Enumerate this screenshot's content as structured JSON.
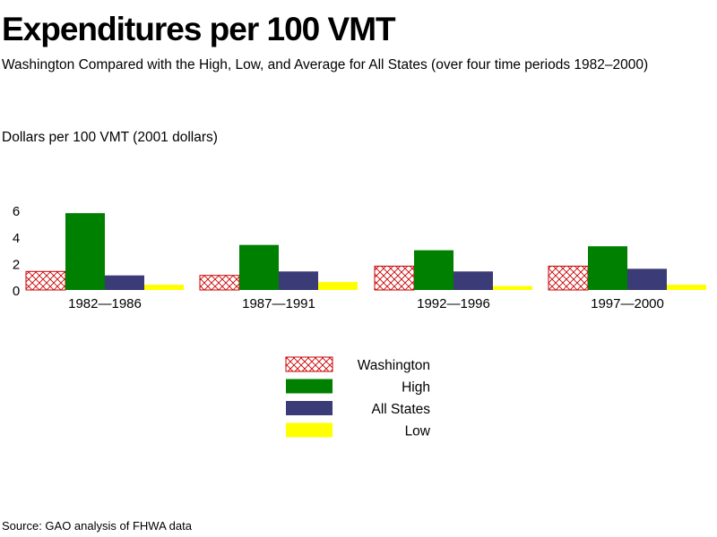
{
  "chart_data": {
    "type": "bar",
    "title": "Expenditures per 100 VMT",
    "subtitle": "Washington Compared with the High, Low, and Average for All States (over four time periods 1982–2000)",
    "ylabel": "Dollars per 100 VMT   (2001 dollars)",
    "xlabel": "",
    "categories": [
      "1982—1986",
      "1987—1991",
      "1992—1996",
      "1997—2000"
    ],
    "yticks": [
      "0",
      "2",
      "4",
      "6"
    ],
    "ylim": [
      0,
      6.5
    ],
    "grid": false,
    "legend": "bottom-center",
    "series": [
      {
        "name": "Washington",
        "values": [
          1.4,
          1.1,
          1.8,
          1.8
        ],
        "color": "#cc0000",
        "pattern": "crosshatch"
      },
      {
        "name": "High",
        "values": [
          5.8,
          3.4,
          3.0,
          3.3
        ],
        "color": "#008000"
      },
      {
        "name": "All States",
        "values": [
          1.1,
          1.4,
          1.4,
          1.6
        ],
        "color": "#3b3b78"
      },
      {
        "name": "Low",
        "values": [
          0.4,
          0.6,
          0.3,
          0.4
        ],
        "color": "#ffff00"
      }
    ]
  },
  "source": "Source: GAO analysis of FHWA data"
}
